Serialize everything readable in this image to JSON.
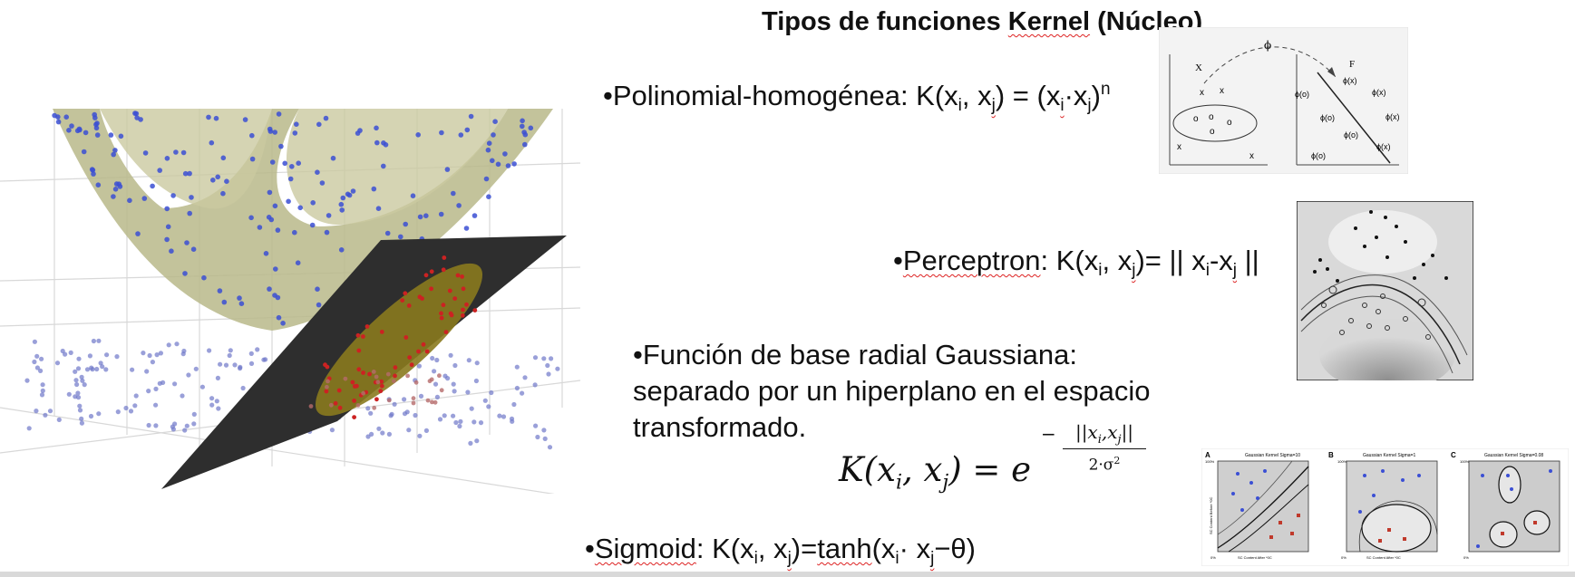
{
  "title": {
    "prefix": "Tipos de funciones ",
    "underlined": "Kernel",
    "suffix": " (Núcleo)"
  },
  "kernels": {
    "polinomial": {
      "bullet": "•",
      "name": "Polinomial-homogénea: ",
      "k": "K(x",
      "i": "i",
      "comma": ", x",
      "j": "j",
      "eq": ") = (x",
      "i2": "i",
      "dot": "·x",
      "j2": "j",
      "close": ")",
      "n": "n"
    },
    "perceptron": {
      "bullet": "•",
      "name": "Perceptron",
      "k": ": K(x",
      "i": "i",
      "comma": ", x",
      "j": "j",
      "eq": ")= || x",
      "i2": "i",
      "minus": "-x",
      "j2": "j",
      "close": " ||"
    },
    "gaussiana": {
      "text_lines": [
        "•Función de base radial Gaussiana:",
        "separado por un hiperplano en el espacio",
        "transformado."
      ]
    },
    "sigmoid": {
      "bullet": "•",
      "name": "Sigmoid",
      "k": ": K(x",
      "i": "i",
      "comma": ", x",
      "j": "j",
      "eq": ")=",
      "tanh": "tanh",
      "open": "(x",
      "i2": "i",
      "dot": "· x",
      "j2": "j",
      "close": "−θ)"
    }
  },
  "formula": {
    "lhs": "K(x",
    "i": "i",
    "comma": ", x",
    "j": "j",
    "rhs": ") = e",
    "num": "||x",
    "ni": "i",
    "nc": ",x",
    "nj": "j",
    "ne": "||",
    "den": "2·σ",
    "sq": "2"
  },
  "mapping_diagram": {
    "x_label": "X",
    "f_label": "F",
    "phi_label": "ϕ",
    "x_point": "x",
    "circle_point": "o",
    "phi_x": "ϕ(x)",
    "phi_o": "ϕ(o)"
  },
  "gaussian_panels": {
    "letters": [
      "A",
      "B",
      "C"
    ],
    "titles": [
      "Gaussian Kernel Sigma=10",
      "Gaussian Kernel Sigma=1",
      "Gaussian Kernel Sigma=0.08"
    ],
    "axis_top": "100%",
    "axis_left": "0%",
    "y_label": "SC Content Before *0C",
    "x_label": "SC Content After *0C"
  },
  "colors": {
    "accent_red": "#cc2222",
    "blue_points": "#3b4fd4",
    "surface": "#b9b88a",
    "plane": "#2e2e2e"
  }
}
